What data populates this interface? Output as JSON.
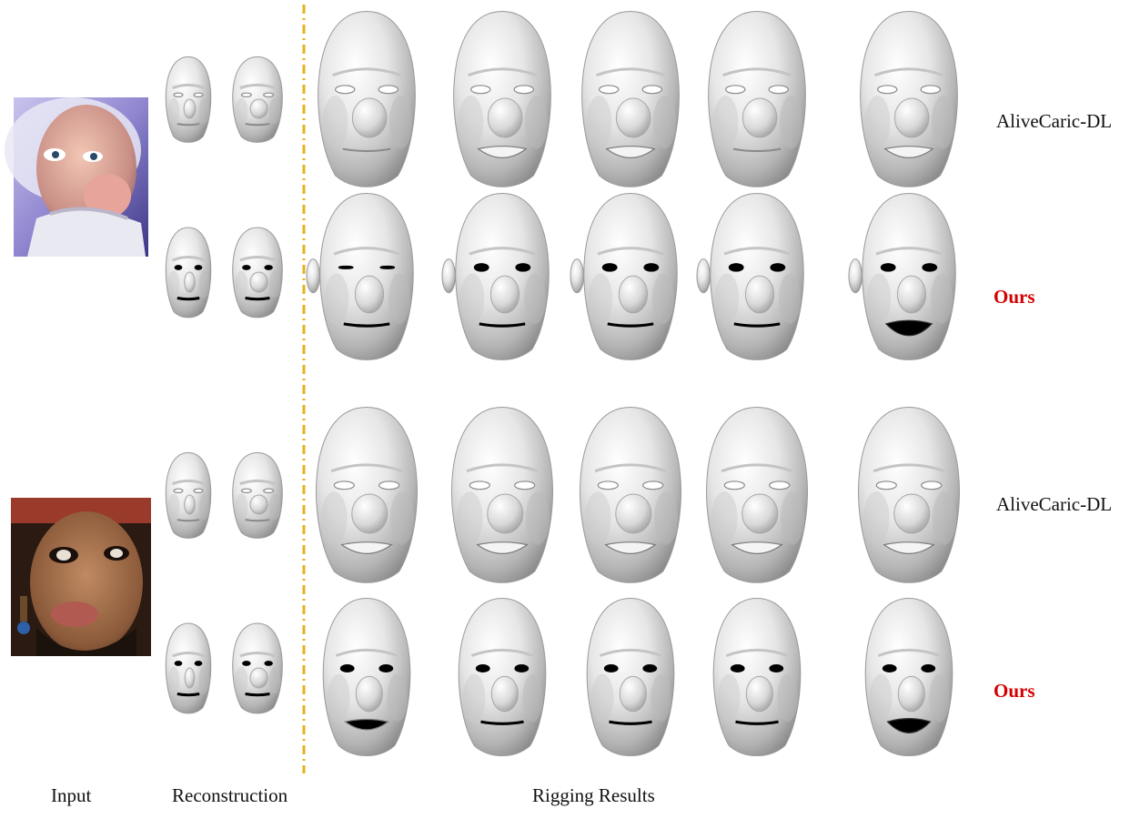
{
  "figure": {
    "rows": [
      {
        "method": "AliveCaric-DL",
        "highlight": false
      },
      {
        "method": "Ours",
        "highlight": true
      },
      {
        "method": "AliveCaric-DL",
        "highlight": false
      },
      {
        "method": "Ours",
        "highlight": true
      }
    ],
    "captions": {
      "input": "Input",
      "reconstruction": "Reconstruction",
      "rigging": "Rigging Results"
    },
    "colors": {
      "divider": "#e8b21e",
      "ours_label": "#d40000",
      "mesh_light": "#ffffff",
      "mesh_dark": "#8a8a8a"
    }
  }
}
